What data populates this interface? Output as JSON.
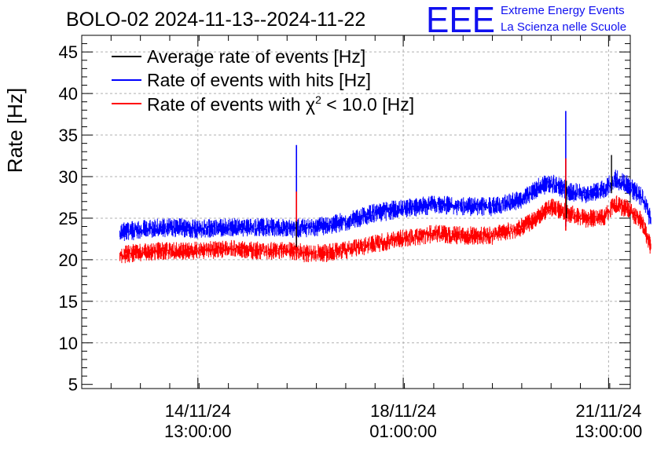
{
  "chart_data": {
    "type": "line",
    "title": "BOLO-02 2024-11-13--2024-11-22",
    "ylabel": "Rate [Hz]",
    "xlabel": "",
    "ylim": [
      4.5,
      47
    ],
    "yticks": [
      5,
      10,
      15,
      20,
      25,
      30,
      35,
      40,
      45
    ],
    "xlim_days": [
      -1.0,
      8.35
    ],
    "xticks": [
      {
        "pos_days": 0.98,
        "line1": "14/11/24",
        "line2": "13:00:00"
      },
      {
        "pos_days": 4.48,
        "line1": "18/11/24",
        "line2": "01:00:00"
      },
      {
        "pos_days": 7.98,
        "line1": "21/11/24",
        "line2": "13:00:00"
      }
    ],
    "grid": true,
    "legend_position": "top-left",
    "series": [
      {
        "name": "Average rate of events [Hz]",
        "color": "#000000",
        "x_days": [
          2.65,
          2.66,
          2.67,
          7.25,
          7.26,
          7.27,
          8.02,
          8.03,
          8.04
        ],
        "values": [
          21.8,
          24.6,
          21.5,
          25.5,
          29.5,
          25.0,
          28.5,
          32.6,
          28.0
        ]
      },
      {
        "name": "Rate of events with hits [Hz]",
        "color": "#0000ff",
        "x_days": [
          -0.35,
          0.0,
          0.5,
          1.0,
          1.5,
          2.0,
          2.5,
          2.8,
          3.2,
          3.6,
          4.0,
          4.5,
          5.0,
          5.5,
          6.0,
          6.5,
          6.8,
          7.0,
          7.3,
          7.6,
          7.9,
          8.1,
          8.3,
          8.55,
          8.7
        ],
        "values": [
          23.3,
          23.6,
          23.9,
          23.7,
          23.9,
          23.9,
          23.8,
          23.8,
          24.1,
          24.8,
          25.6,
          26.2,
          26.6,
          26.4,
          26.4,
          27.2,
          28.8,
          29.2,
          28.3,
          27.8,
          28.5,
          29.7,
          29.0,
          27.5,
          24.8
        ],
        "half_spread": 1.3,
        "spikes": [
          {
            "x_days": 2.66,
            "low": 22.0,
            "high": 33.8
          },
          {
            "x_days": 7.25,
            "low": 24.0,
            "high": 37.9
          }
        ]
      },
      {
        "name": "Rate of events with χ² < 10.0 [Hz]",
        "color": "#ff0000",
        "x_days": [
          -0.35,
          0.0,
          0.5,
          1.0,
          1.5,
          2.0,
          2.5,
          2.8,
          3.2,
          3.6,
          4.0,
          4.5,
          5.0,
          5.5,
          6.0,
          6.5,
          6.8,
          7.0,
          7.3,
          7.6,
          7.9,
          8.1,
          8.3,
          8.55,
          8.7
        ],
        "values": [
          20.6,
          20.9,
          21.1,
          21.1,
          21.3,
          21.1,
          21.1,
          20.8,
          20.8,
          21.3,
          21.9,
          22.6,
          23.1,
          22.9,
          22.9,
          23.9,
          25.3,
          26.3,
          25.6,
          24.9,
          25.2,
          26.7,
          26.1,
          24.6,
          21.5
        ],
        "half_spread": 1.25,
        "spikes": [
          {
            "x_days": 2.66,
            "low": 20.0,
            "high": 28.2
          },
          {
            "x_days": 7.25,
            "low": 23.5,
            "high": 32.2
          }
        ]
      }
    ],
    "legend_entries": [
      {
        "text": "Average rate of events [Hz]",
        "color": "#000000"
      },
      {
        "text": "Rate of events with hits [Hz]",
        "color": "#0000ff"
      },
      {
        "text_pre": "Rate of events with ",
        "text_chi": "χ",
        "text_sup": "2",
        "text_post": " < 10.0 [Hz]",
        "color": "#ff0000"
      }
    ]
  },
  "logo": {
    "letters": "EEE",
    "line1": "Extreme Energy Events",
    "line2": "La Scienza nelle Scuole",
    "color": "#1010f0"
  }
}
